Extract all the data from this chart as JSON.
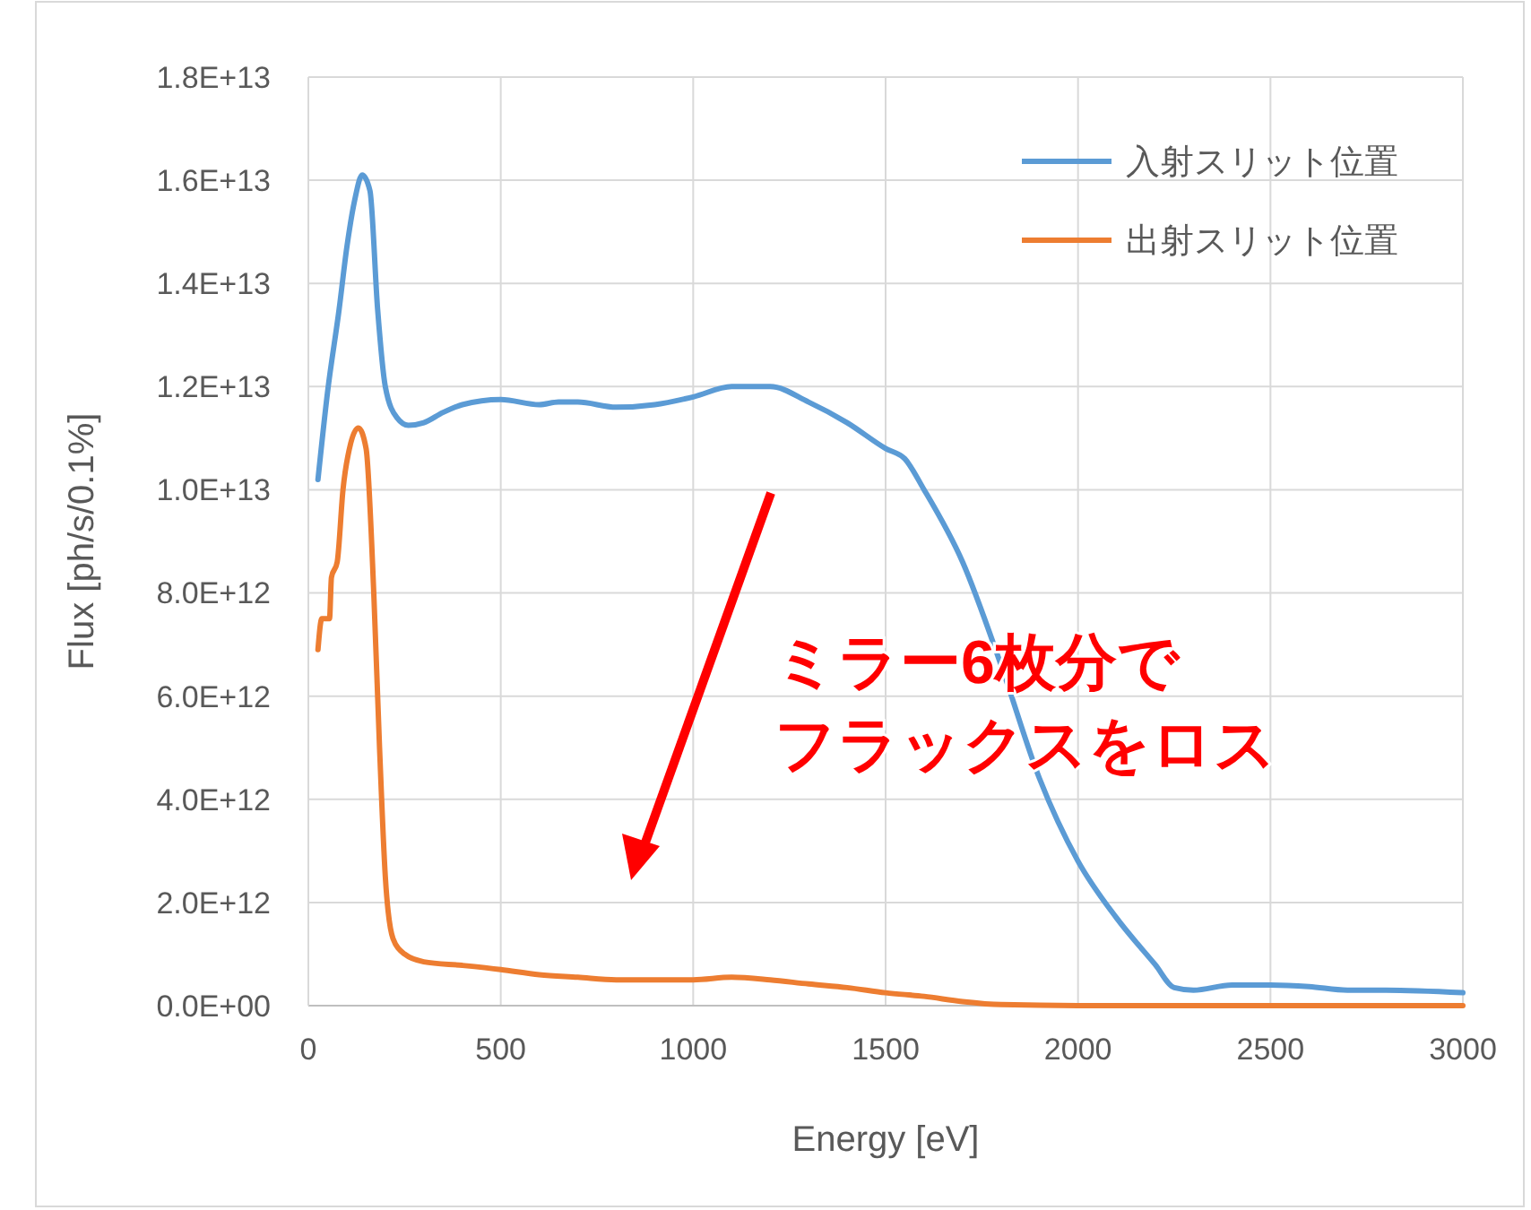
{
  "chart_data": {
    "type": "line",
    "xlabel": "Energy [eV]",
    "ylabel": "Flux [ph/s/0.1%]",
    "xlim": [
      0,
      3000
    ],
    "xticks": [
      0,
      500,
      1000,
      1500,
      2000,
      2500,
      3000
    ],
    "ylim": [
      0,
      18000000000000.0
    ],
    "yticks": [
      {
        "value": 0,
        "label": "0.0E+00"
      },
      {
        "value": 2000000000000.0,
        "label": "2.0E+12"
      },
      {
        "value": 4000000000000.0,
        "label": "4.0E+12"
      },
      {
        "value": 6000000000000.0,
        "label": "6.0E+12"
      },
      {
        "value": 8000000000000.0,
        "label": "8.0E+12"
      },
      {
        "value": 10000000000000.0,
        "label": "1.0E+13"
      },
      {
        "value": 12000000000000.0,
        "label": "1.2E+13"
      },
      {
        "value": 14000000000000.0,
        "label": "1.4E+13"
      },
      {
        "value": 16000000000000.0,
        "label": "1.6E+13"
      },
      {
        "value": 18000000000000.0,
        "label": "1.8E+13"
      }
    ],
    "grid": true,
    "legend": "top right",
    "marker": "none",
    "line_style": "solid",
    "annotations": [
      "ミラー6枚分で",
      "フラックスをロス"
    ],
    "series": [
      {
        "name": "入射スリット位置",
        "color": "#5b9bd5",
        "x": [
          25,
          50,
          80,
          100,
          120,
          140,
          160,
          180,
          200,
          230,
          260,
          300,
          350,
          400,
          500,
          600,
          650,
          700,
          800,
          900,
          1000,
          1100,
          1200,
          1300,
          1400,
          1500,
          1550,
          1600,
          1700,
          1800,
          1900,
          2000,
          2100,
          2200,
          2250,
          2300,
          2400,
          2500,
          2600,
          2700,
          2800,
          3000
        ],
        "values": [
          10200000000000.0,
          11900000000000.0,
          13500000000000.0,
          14700000000000.0,
          15600000000000.0,
          16100000000000.0,
          15800000000000.0,
          13500000000000.0,
          12000000000000.0,
          11400000000000.0,
          11250000000000.0,
          11300000000000.0,
          11500000000000.0,
          11650000000000.0,
          11750000000000.0,
          11650000000000.0,
          11700000000000.0,
          11700000000000.0,
          11600000000000.0,
          11650000000000.0,
          11800000000000.0,
          12000000000000.0,
          12000000000000.0,
          11700000000000.0,
          11300000000000.0,
          10800000000000.0,
          10600000000000.0,
          10000000000000.0,
          8600000000000.0,
          6600000000000.0,
          4400000000000.0,
          2800000000000.0,
          1700000000000.0,
          800000000000.0,
          350000000000.0,
          300000000000.0,
          400000000000.0,
          400000000000.0,
          370000000000.0,
          300000000000.0,
          300000000000.0,
          250000000000.0
        ]
      },
      {
        "name": "出射スリット位置",
        "color": "#ed7d31",
        "x": [
          25,
          35,
          55,
          60,
          75,
          90,
          110,
          130,
          150,
          170,
          185,
          200,
          220,
          250,
          300,
          400,
          500,
          600,
          700,
          800,
          1000,
          1100,
          1200,
          1300,
          1400,
          1500,
          1600,
          1700,
          1800,
          2000,
          3000
        ],
        "values": [
          6900000000000.0,
          7500000000000.0,
          7500000000000.0,
          8300000000000.0,
          8600000000000.0,
          10000000000000.0,
          10900000000000.0,
          11200000000000.0,
          10800000000000.0,
          8000000000000.0,
          5000000000000.0,
          2500000000000.0,
          1300000000000.0,
          1000000000000.0,
          850000000000.0,
          780000000000.0,
          700000000000.0,
          600000000000.0,
          550000000000.0,
          500000000000.0,
          500000000000.0,
          550000000000.0,
          500000000000.0,
          420000000000.0,
          350000000000.0,
          250000000000.0,
          180000000000.0,
          80000000000.0,
          20000000000.0,
          0,
          0
        ]
      }
    ]
  }
}
